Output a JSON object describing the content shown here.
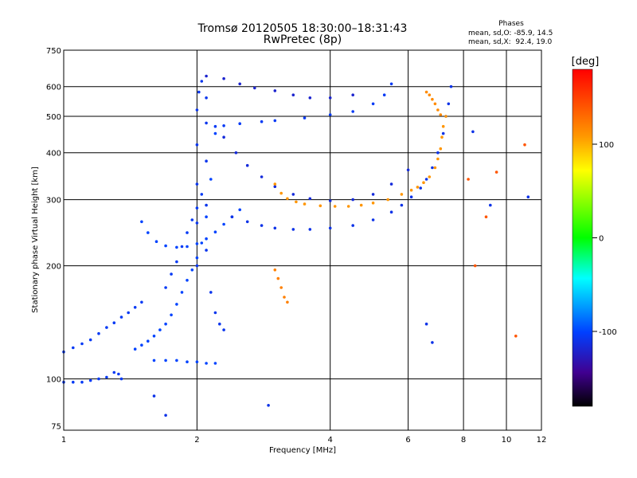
{
  "chart_data": {
    "type": "scatter",
    "title": "Tromsø 20120505 18:30:00–18:31:43",
    "subtitle": "RwPretec (8p)",
    "stats": {
      "heading": "Phases",
      "line_o": "mean, sd,O: -85.9, 14.5",
      "line_x": "mean, sd,X:  92.4, 19.0"
    },
    "xlabel": "Frequency [MHz]",
    "ylabel": "Stationary phase Virtual Height [km]",
    "x_scale": "log",
    "y_scale": "log",
    "xlim": [
      1,
      12
    ],
    "ylim": [
      73,
      750
    ],
    "x_ticks": [
      1,
      2,
      4,
      6,
      8,
      10,
      12
    ],
    "y_ticks": [
      75,
      100,
      200,
      300,
      400,
      500,
      600,
      750
    ],
    "x_grid": [
      2,
      4,
      6,
      8,
      10
    ],
    "y_grid": [
      100,
      200,
      300,
      400,
      500,
      600
    ],
    "colorbar": {
      "label": "[deg]",
      "range": [
        -180,
        180
      ],
      "ticks": [
        100,
        0,
        -100
      ]
    },
    "series": [
      {
        "phase": -105,
        "points": [
          [
            1.0,
            98
          ],
          [
            1.05,
            98
          ],
          [
            1.1,
            98
          ],
          [
            1.15,
            99
          ],
          [
            1.2,
            100
          ],
          [
            1.25,
            101
          ],
          [
            1.3,
            104
          ],
          [
            1.33,
            103
          ],
          [
            1.35,
            100
          ]
        ]
      },
      {
        "phase": -105,
        "points": [
          [
            1.0,
            118
          ],
          [
            1.05,
            121
          ],
          [
            1.1,
            124
          ],
          [
            1.15,
            127
          ],
          [
            1.2,
            132
          ],
          [
            1.25,
            137
          ],
          [
            1.3,
            141
          ],
          [
            1.35,
            146
          ],
          [
            1.4,
            150
          ],
          [
            1.45,
            155
          ],
          [
            1.5,
            160
          ]
        ]
      },
      {
        "phase": -100,
        "points": [
          [
            1.45,
            120
          ],
          [
            1.5,
            123
          ],
          [
            1.55,
            126
          ],
          [
            1.6,
            130
          ],
          [
            1.65,
            135
          ],
          [
            1.7,
            140
          ],
          [
            1.75,
            148
          ],
          [
            1.8,
            158
          ],
          [
            1.85,
            170
          ],
          [
            1.9,
            183
          ],
          [
            1.95,
            195
          ],
          [
            2.0,
            210
          ],
          [
            2.05,
            230
          ],
          [
            2.1,
            270
          ],
          [
            2.15,
            340
          ],
          [
            2.2,
            450
          ]
        ]
      },
      {
        "phase": -100,
        "points": [
          [
            1.6,
            112
          ],
          [
            1.7,
            112
          ],
          [
            1.8,
            112
          ],
          [
            1.9,
            111
          ],
          [
            2.0,
            111
          ],
          [
            2.1,
            110
          ],
          [
            2.2,
            110
          ]
        ]
      },
      {
        "phase": -100,
        "points": [
          [
            1.5,
            262
          ],
          [
            1.55,
            245
          ],
          [
            1.62,
            232
          ],
          [
            1.7,
            226
          ],
          [
            1.8,
            224
          ],
          [
            1.9,
            225
          ],
          [
            2.0,
            229
          ],
          [
            2.1,
            236
          ],
          [
            2.2,
            246
          ],
          [
            2.3,
            258
          ],
          [
            2.4,
            270
          ],
          [
            2.5,
            282
          ]
        ]
      },
      {
        "phase": -105,
        "points": [
          [
            1.7,
            175
          ],
          [
            1.75,
            190
          ],
          [
            1.8,
            205
          ],
          [
            1.85,
            225
          ],
          [
            1.9,
            245
          ],
          [
            1.95,
            265
          ],
          [
            2.0,
            285
          ],
          [
            2.05,
            310
          ]
        ]
      },
      {
        "phase": -108,
        "points": [
          [
            2.0,
            200
          ],
          [
            2.0,
            260
          ],
          [
            2.0,
            330
          ],
          [
            2.0,
            420
          ],
          [
            2.0,
            520
          ],
          [
            2.02,
            580
          ],
          [
            2.05,
            620
          ],
          [
            2.1,
            560
          ],
          [
            2.1,
            480
          ],
          [
            2.1,
            380
          ],
          [
            2.1,
            290
          ],
          [
            2.1,
            220
          ],
          [
            2.15,
            170
          ],
          [
            2.2,
            150
          ],
          [
            2.25,
            140
          ],
          [
            2.3,
            135
          ]
        ]
      },
      {
        "phase": -105,
        "points": [
          [
            2.2,
            470
          ],
          [
            2.3,
            472
          ],
          [
            2.5,
            478
          ],
          [
            2.8,
            484
          ],
          [
            3.0,
            487
          ],
          [
            3.5,
            495
          ],
          [
            4.0,
            505
          ],
          [
            4.5,
            515
          ],
          [
            5.0,
            540
          ],
          [
            5.3,
            570
          ],
          [
            5.5,
            610
          ]
        ]
      },
      {
        "phase": -120,
        "points": [
          [
            2.1,
            640
          ],
          [
            2.3,
            630
          ],
          [
            2.5,
            610
          ],
          [
            2.7,
            595
          ],
          [
            3.0,
            585
          ],
          [
            3.3,
            570
          ],
          [
            3.6,
            560
          ],
          [
            4.0,
            560
          ],
          [
            4.5,
            570
          ]
        ]
      },
      {
        "phase": -115,
        "points": [
          [
            2.3,
            440
          ],
          [
            2.45,
            400
          ],
          [
            2.6,
            370
          ],
          [
            2.8,
            345
          ],
          [
            3.0,
            325
          ],
          [
            3.3,
            310
          ],
          [
            3.6,
            302
          ],
          [
            4.0,
            298
          ],
          [
            4.5,
            300
          ],
          [
            5.0,
            310
          ],
          [
            5.5,
            330
          ],
          [
            6.0,
            360
          ]
        ]
      },
      {
        "phase": -110,
        "points": [
          [
            2.4,
            270
          ],
          [
            2.6,
            262
          ],
          [
            2.8,
            256
          ],
          [
            3.0,
            252
          ],
          [
            3.3,
            250
          ],
          [
            3.6,
            250
          ],
          [
            4.0,
            252
          ],
          [
            4.5,
            256
          ],
          [
            5.0,
            265
          ],
          [
            5.5,
            278
          ],
          [
            5.8,
            290
          ],
          [
            6.1,
            305
          ],
          [
            6.4,
            322
          ],
          [
            6.6,
            340
          ],
          [
            6.8,
            365
          ],
          [
            7.0,
            400
          ],
          [
            7.2,
            450
          ],
          [
            7.3,
            500
          ],
          [
            7.4,
            540
          ],
          [
            7.5,
            600
          ]
        ]
      },
      {
        "phase": 110,
        "points": [
          [
            3.0,
            330
          ],
          [
            3.1,
            312
          ],
          [
            3.2,
            302
          ],
          [
            3.35,
            296
          ],
          [
            3.5,
            292
          ],
          [
            3.8,
            289
          ],
          [
            4.1,
            288
          ],
          [
            4.4,
            288
          ],
          [
            4.7,
            290
          ],
          [
            5.0,
            294
          ],
          [
            5.4,
            300
          ],
          [
            5.8,
            310
          ],
          [
            6.1,
            318
          ],
          [
            6.3,
            324
          ],
          [
            6.5,
            333
          ],
          [
            6.7,
            345
          ],
          [
            6.9,
            365
          ],
          [
            7.0,
            385
          ],
          [
            7.1,
            410
          ],
          [
            7.15,
            440
          ],
          [
            7.2,
            470
          ],
          [
            7.3,
            500
          ]
        ]
      },
      {
        "phase": 115,
        "points": [
          [
            6.6,
            580
          ],
          [
            6.7,
            570
          ],
          [
            6.8,
            555
          ],
          [
            6.9,
            540
          ],
          [
            7.0,
            520
          ],
          [
            7.1,
            505
          ]
        ]
      },
      {
        "phase": 120,
        "points": [
          [
            3.0,
            195
          ],
          [
            3.05,
            185
          ],
          [
            3.1,
            175
          ],
          [
            3.15,
            165
          ],
          [
            3.2,
            160
          ]
        ]
      },
      {
        "phase": 140,
        "points": [
          [
            8.5,
            200
          ],
          [
            9.0,
            270
          ],
          [
            10.5,
            130
          ],
          [
            11.0,
            420
          ],
          [
            9.5,
            355
          ],
          [
            8.2,
            340
          ]
        ]
      },
      {
        "phase": -110,
        "points": [
          [
            9.2,
            290
          ],
          [
            8.4,
            455
          ],
          [
            11.2,
            305
          ],
          [
            1.6,
            90
          ],
          [
            1.7,
            80
          ],
          [
            2.9,
            85
          ],
          [
            6.6,
            140
          ],
          [
            6.8,
            125
          ]
        ]
      }
    ]
  }
}
